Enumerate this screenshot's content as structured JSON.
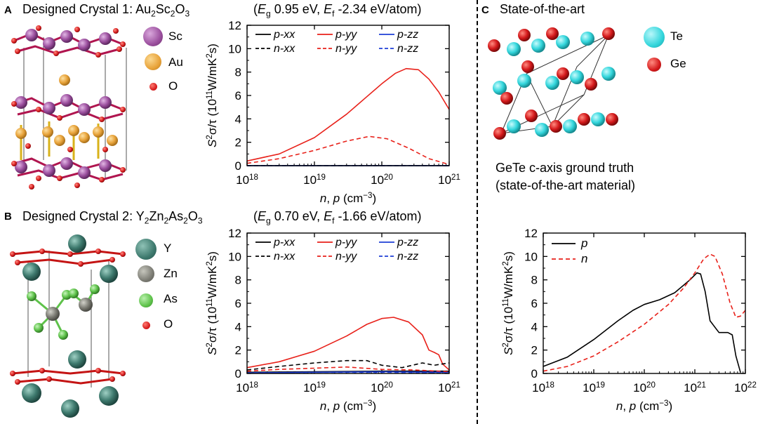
{
  "panels": {
    "A": {
      "letter": "A",
      "title_prefix": "Designed Crystal 1: Au",
      "title_sub1": "2",
      "title_mid1": "Sc",
      "title_sub2": "2",
      "title_mid2": "O",
      "title_sub3": "3",
      "props": "(E_g 0.95 eV, E_f -2.34 eV/atom)",
      "props_parts": {
        "open": "(",
        "eg": "E",
        "eg_sub": "g",
        "eg_val": " 0.95 eV, ",
        "ef": "E",
        "ef_sub": "f",
        "ef_val": " -2.34 eV/atom)"
      },
      "legend": [
        {
          "label": "Sc",
          "color": "#9b4f9e"
        },
        {
          "label": "Au",
          "color": "#e8a33a"
        },
        {
          "label": "O",
          "color": "#d4191b"
        }
      ]
    },
    "B": {
      "letter": "B",
      "title_prefix": "Designed Crystal 2: Y",
      "title_sub1": "2",
      "title_mid1": "Zn",
      "title_sub2": "2",
      "title_mid2": "As",
      "title_sub3": "2",
      "title_mid3": "O",
      "title_sub4": "3",
      "props_parts": {
        "open": "(",
        "eg": "E",
        "eg_sub": "g",
        "eg_val": " 0.70 eV, ",
        "ef": "E",
        "ef_sub": "f",
        "ef_val": " -1.66 eV/atom)"
      },
      "legend": [
        {
          "label": "Y",
          "color": "#3e7a6e"
        },
        {
          "label": "Zn",
          "color": "#7c7c74"
        },
        {
          "label": "As",
          "color": "#5ec24a"
        },
        {
          "label": "O",
          "color": "#d4191b"
        }
      ]
    },
    "C": {
      "letter": "C",
      "title": "State-of-the-art",
      "caption_line1": "GeTe c-axis ground truth",
      "caption_line2": "(state-of-the-art material)",
      "legend": [
        {
          "label": "Te",
          "color": "#33d6dc"
        },
        {
          "label": "Ge",
          "color": "#d4191b"
        }
      ]
    }
  },
  "axis_text": {
    "ylabel_main": "S",
    "ylabel_sup": "2",
    "ylabel_mid": "σ/τ (10",
    "ylabel_sup2": "11",
    "ylabel_unit": "W/mK",
    "ylabel_sup3": "2",
    "ylabel_end": "s)",
    "xlabel": "n, p (cm",
    "xlabel_sup": "−3",
    "xlabel_end": ")"
  },
  "chart_data": [
    {
      "type": "line",
      "title": "Designed Crystal 1: Au2Sc2O3",
      "xlabel": "n, p (cm^-3)",
      "ylabel": "S^2 sigma/tau (10^11 W/mK^2 s)",
      "xscale": "log",
      "xlim": [
        1e+18,
        1e+21
      ],
      "ylim": [
        0,
        12
      ],
      "xticks": [
        "10^18",
        "10^19",
        "10^20",
        "10^21"
      ],
      "yticks": [
        0,
        2,
        4,
        6,
        8,
        10,
        12
      ],
      "legend_position": "top-left",
      "series": [
        {
          "name": "p-xx",
          "color": "#000000",
          "dash": "solid",
          "x": [
            1e+18,
            1e+19,
            1e+20,
            1e+21
          ],
          "y": [
            0,
            0,
            0,
            0
          ]
        },
        {
          "name": "p-yy",
          "color": "#e8211a",
          "dash": "solid",
          "x": [
            1e+18,
            3e+18,
            1e+19,
            3e+19,
            6e+19,
            1e+20,
            1.6e+20,
            2.3e+20,
            3.5e+20,
            5e+20,
            7e+20,
            1e+21
          ],
          "y": [
            0.4,
            1.0,
            2.4,
            4.4,
            5.9,
            7.0,
            7.9,
            8.3,
            8.2,
            7.4,
            6.3,
            4.8
          ]
        },
        {
          "name": "p-zz",
          "color": "#1f3fd6",
          "dash": "solid",
          "x": [
            1e+18,
            1e+19,
            1e+20,
            1e+21
          ],
          "y": [
            0,
            0,
            0,
            0
          ]
        },
        {
          "name": "n-xx",
          "color": "#000000",
          "dash": "dashed",
          "x": [
            1e+18,
            1e+19,
            1e+20,
            1e+21
          ],
          "y": [
            0,
            0,
            0,
            0
          ]
        },
        {
          "name": "n-yy",
          "color": "#e8211a",
          "dash": "dashed",
          "x": [
            1e+18,
            3e+18,
            1e+19,
            3e+19,
            6.5e+19,
            1.2e+20,
            2.5e+20,
            5e+20,
            1e+21
          ],
          "y": [
            0.2,
            0.6,
            1.3,
            2.1,
            2.5,
            2.3,
            1.5,
            0.6,
            0.1
          ]
        },
        {
          "name": "n-zz",
          "color": "#1f3fd6",
          "dash": "dashed",
          "x": [
            1e+18,
            1e+19,
            1e+20,
            1e+21
          ],
          "y": [
            0,
            0,
            0,
            0
          ]
        }
      ]
    },
    {
      "type": "line",
      "title": "Designed Crystal 2: Y2Zn2As2O3",
      "xlabel": "n, p (cm^-3)",
      "ylabel": "S^2 sigma/tau (10^11 W/mK^2 s)",
      "xscale": "log",
      "xlim": [
        1e+18,
        1e+21
      ],
      "ylim": [
        0,
        12
      ],
      "xticks": [
        "10^18",
        "10^19",
        "10^20",
        "10^21"
      ],
      "yticks": [
        0,
        2,
        4,
        6,
        8,
        10,
        12
      ],
      "legend_position": "top-left",
      "series": [
        {
          "name": "p-xx",
          "color": "#000000",
          "dash": "solid",
          "x": [
            1e+18,
            1e+19,
            1e+20,
            1e+21
          ],
          "y": [
            0.1,
            0.15,
            0.2,
            0.2
          ]
        },
        {
          "name": "p-yy",
          "color": "#e8211a",
          "dash": "solid",
          "x": [
            1e+18,
            3e+18,
            1e+19,
            3e+19,
            6e+19,
            1e+20,
            1.5e+20,
            2.5e+20,
            4e+20,
            5e+20,
            6e+20,
            7e+20,
            8e+20,
            1e+21
          ],
          "y": [
            0.5,
            1.0,
            1.9,
            3.2,
            4.2,
            4.7,
            4.8,
            4.4,
            3.3,
            2.0,
            1.8,
            1.6,
            0.8,
            0.3
          ]
        },
        {
          "name": "p-zz",
          "color": "#1f3fd6",
          "dash": "solid",
          "x": [
            1e+18,
            1e+19,
            1e+20,
            1e+21
          ],
          "y": [
            0.05,
            0.1,
            0.15,
            0.1
          ]
        },
        {
          "name": "n-xx",
          "color": "#000000",
          "dash": "dashed",
          "x": [
            1e+18,
            3e+18,
            1e+19,
            3e+19,
            6e+19,
            1e+20,
            2e+20,
            4e+20,
            6e+20,
            1e+21
          ],
          "y": [
            0.3,
            0.6,
            0.9,
            1.1,
            1.1,
            0.7,
            0.5,
            0.9,
            0.7,
            0.9
          ]
        },
        {
          "name": "n-yy",
          "color": "#e8211a",
          "dash": "dashed",
          "x": [
            1e+18,
            3e+18,
            1e+19,
            3e+19,
            1e+20,
            3e+20,
            1e+21
          ],
          "y": [
            0.2,
            0.35,
            0.45,
            0.55,
            0.35,
            0.3,
            0.15
          ]
        },
        {
          "name": "n-zz",
          "color": "#1f3fd6",
          "dash": "dashed",
          "x": [
            1e+18,
            1e+19,
            1e+20,
            1e+21
          ],
          "y": [
            0.05,
            0.1,
            0.1,
            0.05
          ]
        }
      ]
    },
    {
      "type": "line",
      "title": "GeTe c-axis ground truth",
      "xlabel": "n, p (cm^-3)",
      "ylabel": "S^2 sigma/tau (10^11 W/mK^2 s)",
      "xscale": "log",
      "xlim": [
        1e+18,
        1e+22
      ],
      "ylim": [
        0,
        12
      ],
      "xticks": [
        "10^18",
        "10^19",
        "10^20",
        "10^21",
        "10^22"
      ],
      "yticks": [
        0,
        2,
        4,
        6,
        8,
        10,
        12
      ],
      "legend_position": "top-left",
      "series": [
        {
          "name": "p",
          "color": "#000000",
          "dash": "solid",
          "x": [
            1e+18,
            3e+18,
            1e+19,
            3e+19,
            6e+19,
            1e+20,
            2e+20,
            4e+20,
            8e+20,
            1.1e+21,
            1.3e+21,
            1.6e+21,
            2e+21,
            3e+21,
            4.5e+21,
            5.5e+21,
            6.5e+21,
            8e+21
          ],
          "y": [
            0.6,
            1.4,
            2.9,
            4.5,
            5.4,
            5.9,
            6.3,
            6.9,
            8.0,
            8.6,
            8.5,
            7.0,
            4.5,
            3.5,
            3.5,
            3.3,
            1.5,
            0.1
          ]
        },
        {
          "name": "n",
          "color": "#e8211a",
          "dash": "dashed",
          "x": [
            1e+18,
            3e+18,
            1e+19,
            3e+19,
            1e+20,
            3e+20,
            6e+20,
            1e+21,
            1.5e+21,
            2e+21,
            2.5e+21,
            3.5e+21,
            5e+21,
            6.5e+21,
            8e+21,
            1e+22
          ],
          "y": [
            0.2,
            0.6,
            1.5,
            2.7,
            4.2,
            5.9,
            7.3,
            8.6,
            9.8,
            10.2,
            10.0,
            8.5,
            6.0,
            4.8,
            4.9,
            5.4
          ]
        }
      ]
    }
  ]
}
